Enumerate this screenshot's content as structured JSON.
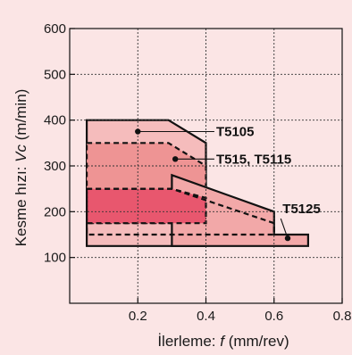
{
  "chart_data": {
    "type": "area",
    "xlabel_prefix": "İlerleme: ",
    "xlabel_var": "f",
    "xlabel_unit": " (mm/rev)",
    "ylabel_prefix": "Kesme hızı: ",
    "ylabel_var": "Vc",
    "ylabel_unit": " (m/min)",
    "xlim": [
      0,
      0.8
    ],
    "ylim": [
      0,
      600
    ],
    "x_ticks": [
      0.2,
      0.4,
      0.6,
      0.8
    ],
    "x_tick_labels": [
      "0.2",
      "0.4",
      "0.6",
      "0.8"
    ],
    "y_ticks": [
      100,
      200,
      300,
      400,
      500,
      600
    ],
    "y_tick_labels": [
      "100",
      "200",
      "300",
      "400",
      "500",
      "600"
    ],
    "grid": true,
    "regions": [
      {
        "name": "T5105",
        "fill": "#f5bcbc",
        "border": "solid",
        "points": [
          [
            0.05,
            400
          ],
          [
            0.29,
            400
          ],
          [
            0.4,
            350
          ],
          [
            0.4,
            125
          ],
          [
            0.05,
            125
          ]
        ]
      },
      {
        "name": "T515, T5115",
        "fill": "#ee9494",
        "border": "dashed",
        "points": [
          [
            0.05,
            350
          ],
          [
            0.29,
            350
          ],
          [
            0.4,
            300
          ],
          [
            0.4,
            175
          ],
          [
            0.05,
            175
          ]
        ]
      },
      {
        "name": "T5125",
        "fill": "#f2a8a8",
        "border": "solid",
        "points": [
          [
            0.3,
            280
          ],
          [
            0.6,
            200
          ],
          [
            0.6,
            150
          ],
          [
            0.7,
            150
          ],
          [
            0.7,
            125
          ],
          [
            0.3,
            125
          ]
        ]
      },
      {
        "name": "core",
        "fill": "#e8576e",
        "border": "dashed",
        "points": [
          [
            0.05,
            250
          ],
          [
            0.3,
            250
          ],
          [
            0.4,
            230
          ],
          [
            0.4,
            175
          ],
          [
            0.05,
            175
          ]
        ]
      }
    ],
    "overlays": [
      {
        "fill": "none",
        "border": "dashed",
        "points": [
          [
            0.05,
            250
          ],
          [
            0.3,
            250
          ],
          [
            0.6,
            175
          ],
          [
            0.6,
            150
          ],
          [
            0.05,
            150
          ]
        ]
      }
    ],
    "annotations": [
      {
        "text": "T5105",
        "point": [
          0.2,
          375
        ],
        "label_at": [
          0.43,
          375
        ]
      },
      {
        "text": "T515, T5115",
        "point": [
          0.31,
          315
        ],
        "label_at": [
          0.43,
          315
        ]
      },
      {
        "text": "T5125",
        "point": [
          0.64,
          142
        ],
        "label_at": [
          0.625,
          185
        ]
      }
    ]
  }
}
